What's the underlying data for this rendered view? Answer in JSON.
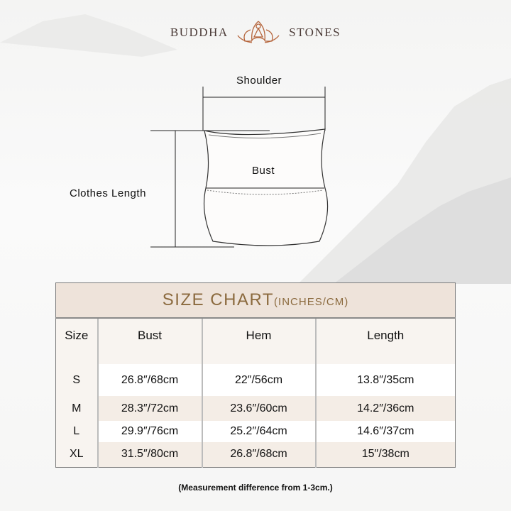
{
  "brand": {
    "left": "BUDDHA",
    "right": "STONES",
    "logo_icon": "lotus-meditation-icon",
    "color": "#a0522d"
  },
  "diagram": {
    "shoulder": "Shoulder",
    "bust": "Bust",
    "clothes_length": "Clothes Length"
  },
  "size_chart": {
    "title": "SIZE CHART",
    "title_unit": "(INCHES/CM)",
    "headers": [
      "Size",
      "Bust",
      "Hem",
      "Length"
    ],
    "rows": [
      [
        "S",
        "26.8″/68cm",
        "22″/56cm",
        "13.8″/35cm"
      ],
      [
        "M",
        "28.3″/72cm",
        "23.6″/60cm",
        "14.2″/36cm"
      ],
      [
        "L",
        "29.9″/76cm",
        "25.2″/64cm",
        "14.6″/37cm"
      ],
      [
        "XL",
        "31.5″/80cm",
        "26.8″/68cm",
        "15″/38cm"
      ]
    ],
    "accent": "#8b6a3e"
  },
  "note": "(Measurement difference from 1-3cm.)"
}
